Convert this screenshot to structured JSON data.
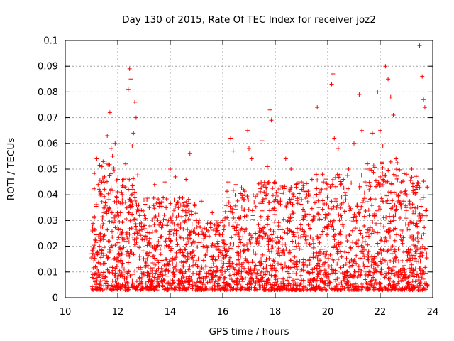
{
  "chart_data": {
    "type": "scatter",
    "title": "Day 130 of 2015, Rate Of TEC Index for receiver joz2",
    "xlabel": "GPS time / hours",
    "ylabel": "ROTI / TECUs",
    "xlim": [
      10,
      24
    ],
    "ylim": [
      0,
      0.1
    ],
    "grid": true,
    "marker": "+",
    "marker_color": "#ff0000",
    "x_ticks": [
      10,
      12,
      14,
      16,
      18,
      20,
      22,
      24
    ],
    "x_tick_labels": [
      "10",
      "12",
      "14",
      "16",
      "18",
      "20",
      "22",
      "24"
    ],
    "y_ticks": [
      0,
      0.01,
      0.02,
      0.03,
      0.04,
      0.05,
      0.06,
      0.07,
      0.08,
      0.09,
      0.1
    ],
    "y_tick_labels": [
      "0",
      "0.01",
      "0.02",
      "0.03",
      "0.04",
      "0.05",
      "0.06",
      "0.07",
      "0.08",
      "0.09",
      "0.1"
    ],
    "x_range_observed": [
      11.0,
      23.8
    ],
    "series": [
      {
        "name": "ROTI",
        "color": "#ff0000",
        "points": [
          [
            11.05,
            0.009
          ],
          [
            11.1,
            0.031
          ],
          [
            11.15,
            0.012
          ],
          [
            11.2,
            0.054
          ],
          [
            11.25,
            0.044
          ],
          [
            11.3,
            0.02
          ],
          [
            11.4,
            0.051
          ],
          [
            11.5,
            0.047
          ],
          [
            11.55,
            0.038
          ],
          [
            11.6,
            0.063
          ],
          [
            11.7,
            0.072
          ],
          [
            11.75,
            0.058
          ],
          [
            11.8,
            0.055
          ],
          [
            11.9,
            0.06
          ],
          [
            12.0,
            0.046
          ],
          [
            12.1,
            0.033
          ],
          [
            12.2,
            0.043
          ],
          [
            12.3,
            0.052
          ],
          [
            12.4,
            0.081
          ],
          [
            12.45,
            0.089
          ],
          [
            12.5,
            0.085
          ],
          [
            12.55,
            0.059
          ],
          [
            12.6,
            0.064
          ],
          [
            12.65,
            0.076
          ],
          [
            12.7,
            0.07
          ],
          [
            12.8,
            0.036
          ],
          [
            12.9,
            0.029
          ],
          [
            13.0,
            0.038
          ],
          [
            13.2,
            0.035
          ],
          [
            13.4,
            0.044
          ],
          [
            13.6,
            0.037
          ],
          [
            13.8,
            0.045
          ],
          [
            14.0,
            0.05
          ],
          [
            14.2,
            0.047
          ],
          [
            14.4,
            0.036
          ],
          [
            14.6,
            0.046
          ],
          [
            14.75,
            0.056
          ],
          [
            15.0,
            0.03
          ],
          [
            15.3,
            0.027
          ],
          [
            15.6,
            0.033
          ],
          [
            16.0,
            0.03
          ],
          [
            16.2,
            0.045
          ],
          [
            16.3,
            0.062
          ],
          [
            16.4,
            0.057
          ],
          [
            16.5,
            0.044
          ],
          [
            16.8,
            0.042
          ],
          [
            16.95,
            0.065
          ],
          [
            17.0,
            0.058
          ],
          [
            17.1,
            0.054
          ],
          [
            17.3,
            0.04
          ],
          [
            17.5,
            0.061
          ],
          [
            17.7,
            0.051
          ],
          [
            17.8,
            0.073
          ],
          [
            17.85,
            0.069
          ],
          [
            18.0,
            0.045
          ],
          [
            18.2,
            0.038
          ],
          [
            18.4,
            0.054
          ],
          [
            18.6,
            0.05
          ],
          [
            18.8,
            0.043
          ],
          [
            19.0,
            0.045
          ],
          [
            19.2,
            0.04
          ],
          [
            19.4,
            0.046
          ],
          [
            19.6,
            0.074
          ],
          [
            19.8,
            0.048
          ],
          [
            20.0,
            0.044
          ],
          [
            20.15,
            0.083
          ],
          [
            20.2,
            0.087
          ],
          [
            20.25,
            0.062
          ],
          [
            20.4,
            0.058
          ],
          [
            20.6,
            0.046
          ],
          [
            20.8,
            0.05
          ],
          [
            21.0,
            0.06
          ],
          [
            21.2,
            0.079
          ],
          [
            21.3,
            0.065
          ],
          [
            21.5,
            0.05
          ],
          [
            21.7,
            0.064
          ],
          [
            21.9,
            0.08
          ],
          [
            22.0,
            0.065
          ],
          [
            22.1,
            0.059
          ],
          [
            22.2,
            0.09
          ],
          [
            22.3,
            0.085
          ],
          [
            22.4,
            0.078
          ],
          [
            22.5,
            0.071
          ],
          [
            22.6,
            0.054
          ],
          [
            22.8,
            0.045
          ],
          [
            23.0,
            0.048
          ],
          [
            23.2,
            0.05
          ],
          [
            23.4,
            0.043
          ],
          [
            23.5,
            0.098
          ],
          [
            23.6,
            0.086
          ],
          [
            23.65,
            0.077
          ],
          [
            23.7,
            0.074
          ],
          [
            23.8,
            0.005
          ]
        ]
      }
    ]
  }
}
